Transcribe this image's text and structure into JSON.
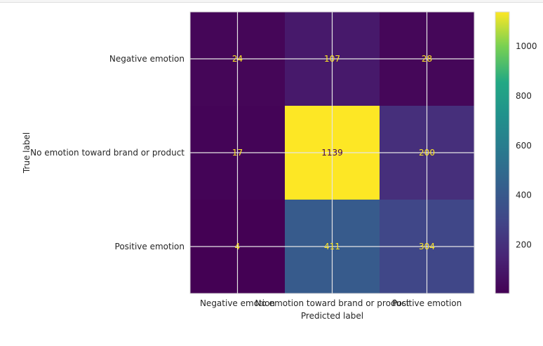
{
  "chart_data": {
    "type": "heatmap",
    "title": "",
    "xlabel": "Predicted label",
    "ylabel": "True label",
    "x_categories": [
      "Negative emotion",
      "No emotion toward brand or product",
      "Positive emotion"
    ],
    "y_categories": [
      "Negative emotion",
      "No emotion toward brand or product",
      "Positive emotion"
    ],
    "values": [
      [
        24,
        107,
        28
      ],
      [
        17,
        1139,
        200
      ],
      [
        4,
        411,
        304
      ]
    ],
    "colormap": "viridis",
    "vmin": 4,
    "vmax": 1139,
    "colorbar_ticks": [
      "200",
      "400",
      "600",
      "800",
      "1000"
    ],
    "grid": true,
    "text_color_light": "#fde725",
    "text_color_dark": "#440154"
  }
}
